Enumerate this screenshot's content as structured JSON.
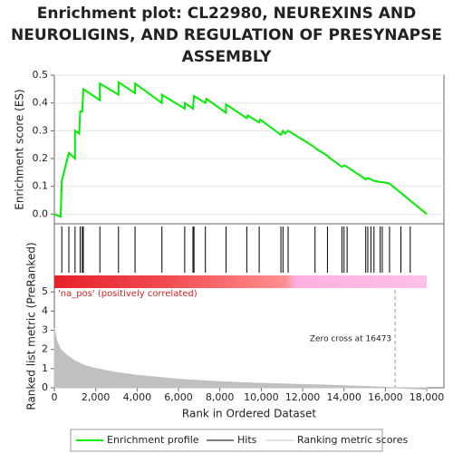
{
  "chart_data": [
    {
      "type": "line",
      "title": "Enrichment plot: CL22980, NEUREXINS AND NEUROLIGINS, AND REGULATION OF PRESYNAPSE ASSEMBLY",
      "title_lines": [
        "Enrichment plot: CL22980, NEUREXINS AND",
        "NEUROLIGINS, AND REGULATION OF PRESYNAPSE",
        "ASSEMBLY"
      ],
      "y_label": "Enrichment score (ES)",
      "xlim": [
        0,
        18830
      ],
      "ylim": [
        -0.035,
        0.5
      ],
      "yticks": [
        {
          "value": 0,
          "label": "0.0"
        },
        0.1,
        0.2,
        0.3,
        0.4,
        0.5
      ],
      "grid": true,
      "series": [
        {
          "name": "Enrichment profile",
          "color": "#00ee00",
          "x": [
            0,
            300,
            360,
            700,
            1000,
            1000,
            1200,
            1250,
            1350,
            1400,
            2200,
            2200,
            3100,
            3100,
            3900,
            3900,
            5200,
            5200,
            6300,
            6300,
            6700,
            6750,
            7300,
            7350,
            8300,
            8300,
            9300,
            9350,
            9900,
            9950,
            10950,
            11050,
            11150,
            11300,
            12600,
            12650,
            13200,
            13250,
            13900,
            14000,
            14150,
            15050,
            15150,
            15300,
            15450,
            15750,
            15850,
            16200,
            18000
          ],
          "values": [
            0,
            -0.01,
            0.12,
            0.22,
            0.2,
            0.3,
            0.29,
            0.37,
            0.37,
            0.45,
            0.41,
            0.47,
            0.43,
            0.475,
            0.435,
            0.47,
            0.4,
            0.43,
            0.38,
            0.4,
            0.38,
            0.425,
            0.4,
            0.415,
            0.365,
            0.395,
            0.345,
            0.355,
            0.33,
            0.34,
            0.285,
            0.3,
            0.29,
            0.3,
            0.24,
            0.235,
            0.21,
            0.205,
            0.17,
            0.175,
            0.17,
            0.125,
            0.13,
            0.125,
            0.12,
            0.115,
            0.115,
            0.11,
            0
          ]
        },
        {
          "name": "Hits",
          "color": "#000000",
          "x": [
            360,
            700,
            1000,
            1250,
            1350,
            1400,
            2200,
            3100,
            3900,
            5200,
            6300,
            6700,
            6750,
            7300,
            8300,
            9300,
            9900,
            10950,
            11050,
            11300,
            12600,
            13200,
            13900,
            14000,
            14150,
            15050,
            15150,
            15300,
            15450,
            15750,
            15850,
            16200,
            16750,
            17200
          ]
        }
      ]
    },
    {
      "type": "area",
      "y_label": "Ranked list metric (PreRanked)",
      "x_label": "Rank in Ordered Dataset",
      "xlim": [
        0,
        18830
      ],
      "ylim": [
        0,
        5.2
      ],
      "yticks": [
        0,
        1,
        2,
        3,
        4,
        5
      ],
      "xticks": [
        0,
        {
          "value": 2000,
          "label": "2,000"
        },
        {
          "value": 4000,
          "label": "4,000"
        },
        {
          "value": 6000,
          "label": "6,000"
        },
        {
          "value": 8000,
          "label": "8,000"
        },
        {
          "value": 10000,
          "label": "10,000"
        },
        {
          "value": 12000,
          "label": "12,000"
        },
        {
          "value": 14000,
          "label": "14,000"
        },
        {
          "value": 16000,
          "label": "16,000"
        },
        {
          "value": 18000,
          "label": "18,000"
        }
      ],
      "pos_label": "'na_pos' (positively correlated)",
      "zero_cross": 16473,
      "zero_cross_label": "Zero cross at 16473",
      "series": [
        {
          "name": "Ranking metric scores",
          "color": "#c0c0c0",
          "x": [
            0,
            100,
            300,
            600,
            1000,
            1500,
            2000,
            3000,
            4000,
            5000,
            6000,
            7000,
            8000,
            9000,
            10000,
            11000,
            12000,
            13000,
            14000,
            15000,
            16000,
            16473,
            17000,
            18000
          ],
          "values": [
            3.1,
            2.5,
            2.0,
            1.7,
            1.4,
            1.15,
            1.0,
            0.8,
            0.65,
            0.55,
            0.45,
            0.38,
            0.32,
            0.27,
            0.23,
            0.2,
            0.17,
            0.14,
            0.11,
            0.07,
            0.03,
            0,
            -0.03,
            -0.08
          ]
        }
      ]
    }
  ]
}
